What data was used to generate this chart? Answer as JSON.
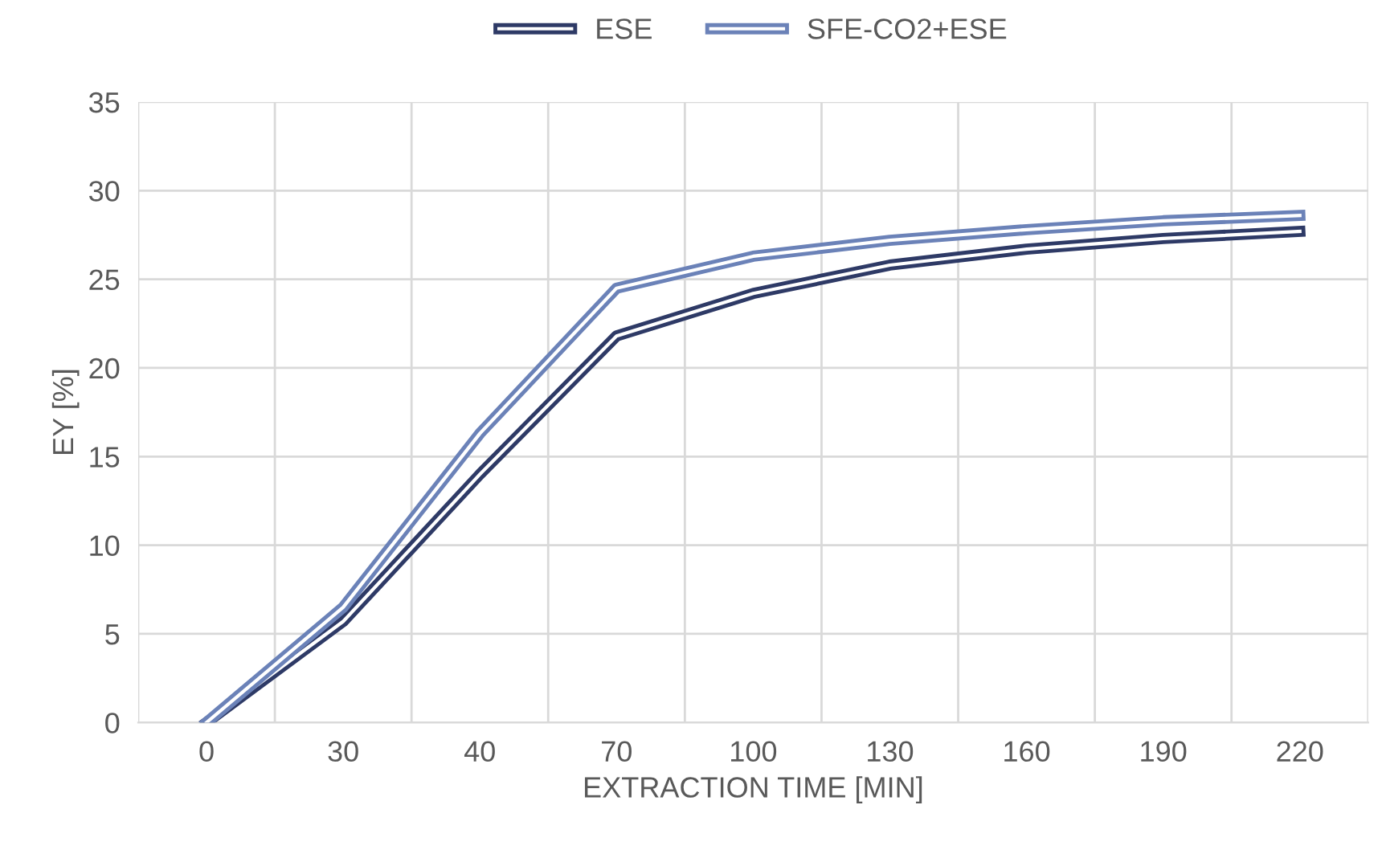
{
  "chart_data": {
    "type": "line",
    "xlabel": "EXTRACTION TIME [MIN]",
    "ylabel": "EY [%]",
    "categories": [
      "0",
      "30",
      "40",
      "70",
      "100",
      "130",
      "160",
      "190",
      "220"
    ],
    "series": [
      {
        "name": "ESE",
        "color": "#2e3a66",
        "values": [
          0,
          5.7,
          14,
          21.8,
          24.2,
          25.8,
          26.7,
          27.3,
          27.7
        ]
      },
      {
        "name": "SFE-CO2+ESE",
        "color": "#6b82b8",
        "values": [
          0,
          6.5,
          16.3,
          24.5,
          26.3,
          27.2,
          27.8,
          28.3,
          28.6
        ]
      }
    ],
    "ylim": [
      0,
      35
    ],
    "yticks": [
      0,
      5,
      10,
      15,
      20,
      25,
      30,
      35
    ],
    "grid": true,
    "legend": "top",
    "marker": "none",
    "line_style": "solid"
  }
}
